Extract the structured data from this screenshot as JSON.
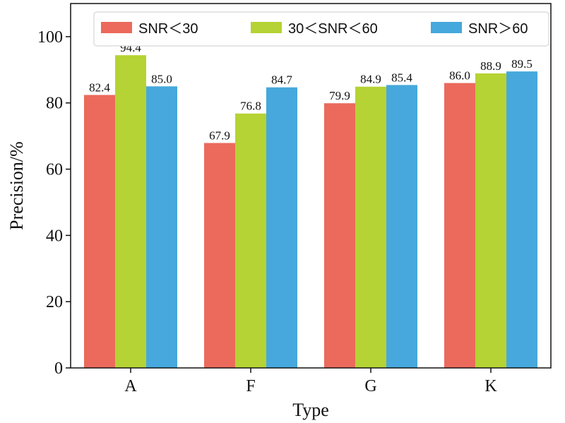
{
  "chart_data": {
    "type": "bar",
    "title": "",
    "xlabel": "Type",
    "ylabel": "Precision/%",
    "categories": [
      "A",
      "F",
      "G",
      "K"
    ],
    "ylim": [
      0,
      110
    ],
    "yticks": [
      0,
      20,
      40,
      60,
      80,
      100
    ],
    "grid": false,
    "legend_position": "top",
    "series": [
      {
        "name": "SNR＜30",
        "color": "#EB6A5C",
        "values": [
          82.4,
          67.9,
          79.9,
          86.0
        ]
      },
      {
        "name": "30＜SNR＜60",
        "color": "#B5D334",
        "values": [
          94.4,
          76.8,
          84.9,
          88.9
        ]
      },
      {
        "name": "SNR＞60",
        "color": "#46A8DC",
        "values": [
          85.0,
          84.7,
          85.4,
          89.5
        ]
      }
    ]
  }
}
